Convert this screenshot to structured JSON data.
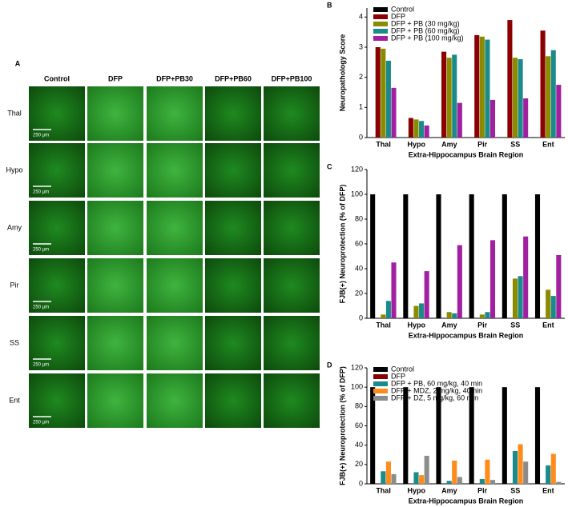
{
  "panel_a": {
    "label": "A",
    "columns": [
      "Control",
      "DFP",
      "DFP+PB30",
      "DFP+PB60",
      "DFP+PB100"
    ],
    "rows": [
      "Thal",
      "Hypo",
      "Amy",
      "Pir",
      "SS",
      "Ent"
    ],
    "scale_bar": "250 µm"
  },
  "chart_data": [
    {
      "type": "bar",
      "panel": "B",
      "ylabel": "Neuropathology Score",
      "xlabel": "Extra-Hippocampus Brain Region",
      "categories": [
        "Thal",
        "Hypo",
        "Amy",
        "Pir",
        "SS",
        "Ent"
      ],
      "ylim": [
        0,
        4.3
      ],
      "yticks": [
        0,
        1,
        2,
        3,
        4
      ],
      "legend": "upper left",
      "series": [
        {
          "name": "Control",
          "color": "#000000",
          "values": [
            0,
            0,
            0,
            0,
            0,
            0
          ]
        },
        {
          "name": "DFP",
          "color": "#8b0000",
          "values": [
            3.0,
            0.65,
            2.85,
            3.4,
            3.9,
            3.55
          ]
        },
        {
          "name": "DFP + PB (30 mg/kg)",
          "color": "#8b8b00",
          "values": [
            2.95,
            0.6,
            2.65,
            3.35,
            2.65,
            2.7
          ]
        },
        {
          "name": "DFP + PB (60 mg/kg)",
          "color": "#1a8a8a",
          "values": [
            2.55,
            0.55,
            2.75,
            3.25,
            2.6,
            2.9
          ]
        },
        {
          "name": "DFP + PB (100 mg/kg)",
          "color": "#a020a0",
          "values": [
            1.65,
            0.4,
            1.15,
            1.25,
            1.3,
            1.75
          ]
        }
      ]
    },
    {
      "type": "bar",
      "panel": "C",
      "ylabel": "FJB(+) Neuroprotection (% of DFP)",
      "xlabel": "Extra-Hippocampus Brain Region",
      "categories": [
        "Thal",
        "Hypo",
        "Amy",
        "Pir",
        "SS",
        "Ent"
      ],
      "ylim": [
        0,
        120
      ],
      "yticks": [
        0,
        20,
        40,
        60,
        80,
        100,
        120
      ],
      "series": [
        {
          "color": "#000000",
          "values": [
            100,
            100,
            100,
            100,
            100,
            100
          ]
        },
        {
          "color": "#8b0000",
          "values": [
            0,
            0,
            0,
            0,
            0,
            0
          ]
        },
        {
          "color": "#8b8b00",
          "values": [
            3,
            10,
            5,
            3,
            32,
            23
          ]
        },
        {
          "color": "#1a8a8a",
          "values": [
            14,
            12,
            4,
            5,
            34,
            18
          ]
        },
        {
          "color": "#a020a0",
          "values": [
            45,
            38,
            59,
            63,
            66,
            51
          ]
        }
      ]
    },
    {
      "type": "bar",
      "panel": "D",
      "ylabel": "FJB(+) Neuroprotection (% of DFP)",
      "xlabel": "Extra-Hippocampus Brain Region",
      "categories": [
        "Thal",
        "Hypo",
        "Amy",
        "Pir",
        "SS",
        "Ent"
      ],
      "ylim": [
        0,
        120
      ],
      "yticks": [
        0,
        20,
        40,
        60,
        80,
        100,
        120
      ],
      "legend": "upper left",
      "series": [
        {
          "name": "Control",
          "color": "#000000",
          "values": [
            100,
            100,
            100,
            100,
            100,
            100
          ]
        },
        {
          "name": "DFP",
          "color": "#8b0000",
          "values": [
            0,
            0,
            0,
            0,
            0,
            0
          ]
        },
        {
          "name": "DFP + PB, 60 mg/kg, 40 min",
          "color": "#1a8a8a",
          "values": [
            13,
            12,
            3,
            5,
            34,
            19
          ]
        },
        {
          "name": "DFP + MDZ, 2 mg/kg, 40min",
          "color": "#ff8c1a",
          "values": [
            23,
            9,
            24,
            25,
            41,
            31
          ]
        },
        {
          "name": "DFP + DZ, 5 mg/kg, 60 min",
          "color": "#8c8c8c",
          "values": [
            10,
            29,
            7,
            4,
            23,
            2
          ]
        }
      ]
    }
  ]
}
